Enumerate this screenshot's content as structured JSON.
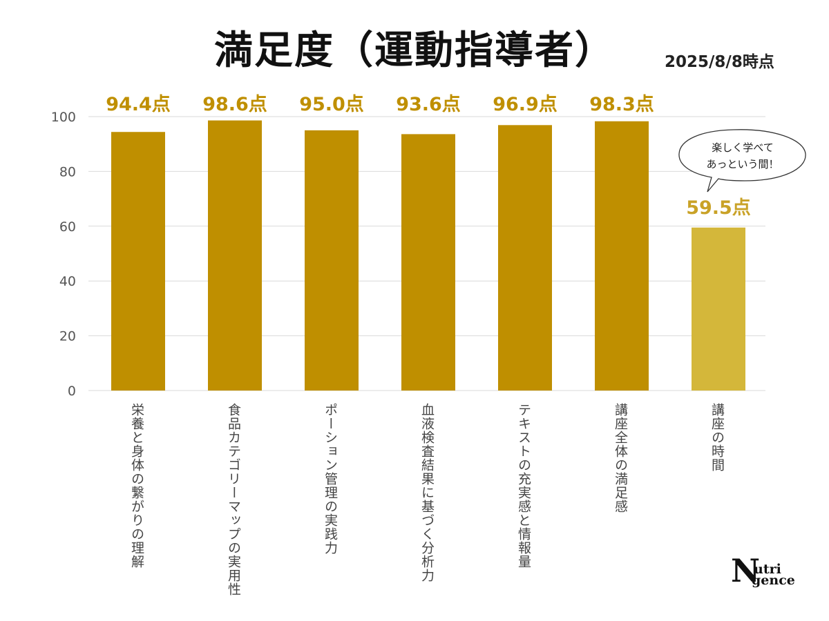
{
  "header": {
    "title": "満足度（運動指導者）",
    "as_of": "2025/8/8時点"
  },
  "callout": {
    "lines": [
      "楽しく学べて",
      "あっという間！"
    ],
    "target_category": "講座の時間"
  },
  "logo": {
    "big": "N",
    "line1": "utri",
    "line2": "gence"
  },
  "colors": {
    "bar_primary": "#BF8F00",
    "bar_highlight": "#D4B73A",
    "label_primary": "#BF8F00",
    "label_highlight": "#C9A227",
    "grid": "#d9d9d9",
    "axis_text": "#555555"
  },
  "chart_data": {
    "type": "bar",
    "title": "満足度（運動指導者）",
    "subtitle": "2025/8/8時点",
    "categories": [
      "栄養と身体の繋がりの理解",
      "食品カテゴリーマップの実用性",
      "ポーション管理の実践力",
      "血液検査結果に基づく分析力",
      "テキストの充実感と情報量",
      "講座全体の満足感",
      "講座の時間"
    ],
    "values": [
      94.4,
      98.6,
      95.0,
      93.6,
      96.9,
      98.3,
      59.5
    ],
    "data_labels": [
      "94.4点",
      "98.6点",
      "95.0点",
      "93.6点",
      "96.9点",
      "98.3点",
      "59.5点"
    ],
    "highlight_index": 6,
    "xlabel": "",
    "ylabel": "",
    "ylim": [
      0,
      100
    ],
    "yticks": [
      0,
      20,
      40,
      60,
      80,
      100
    ],
    "grid": true,
    "legend": "none"
  }
}
